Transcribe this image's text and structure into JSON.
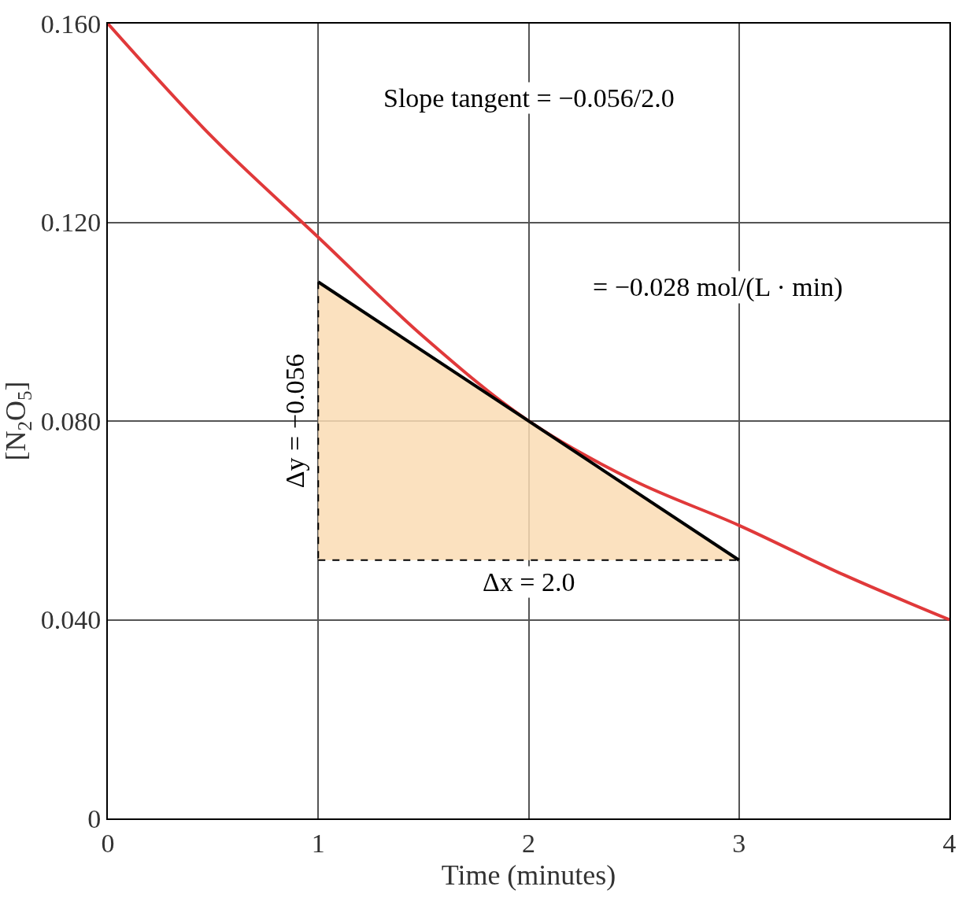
{
  "chart_data": {
    "type": "line",
    "xlabel": "Time (minutes)",
    "ylabel": "[N$_{2}$O$_{5}$]",
    "xlim": [
      0,
      4
    ],
    "xticks": [
      0,
      1,
      2,
      3,
      4
    ],
    "ylim": [
      0,
      0.16
    ],
    "yticks": [
      {
        "value": 0,
        "label": "0"
      },
      {
        "value": 0.04,
        "label": "0.040"
      },
      {
        "value": 0.08,
        "label": "0.080"
      },
      {
        "value": 0.12,
        "label": "0.120"
      },
      {
        "value": 0.16,
        "label": "0.160"
      }
    ],
    "grid": true,
    "series": [
      {
        "color": "#e0393a",
        "x": [
          0,
          0.5,
          1,
          1.5,
          2,
          2.5,
          3,
          3.5,
          4
        ],
        "values": [
          0.16,
          0.137,
          0.117,
          0.097,
          0.08,
          0.068,
          0.059,
          0.049,
          0.04
        ]
      },
      {
        "color": "#000000",
        "x": [
          1,
          3
        ],
        "values": [
          0.108,
          0.052
        ],
        "lower": [
          0.052,
          0.052
        ],
        "upper": [
          0.108,
          0.052
        ]
      },
      {
        "color": "#000000",
        "x": [
          1,
          1
        ],
        "values": [
          0.108,
          0.052
        ],
        "line_style": "dashed"
      },
      {
        "color": "#000000",
        "x": [
          1,
          3
        ],
        "values": [
          0.052,
          0.052
        ],
        "line_style": "dashed"
      }
    ],
    "annotations": [
      "Slope tangent = −0.056/2.0",
      "= −0.028 mol/(L · min)",
      {
        "text": "Δy = −0.056",
        "x": 1,
        "y": 0.08
      },
      {
        "text": "Δx = 2.0",
        "x": 2,
        "y": 0.052
      }
    ]
  }
}
